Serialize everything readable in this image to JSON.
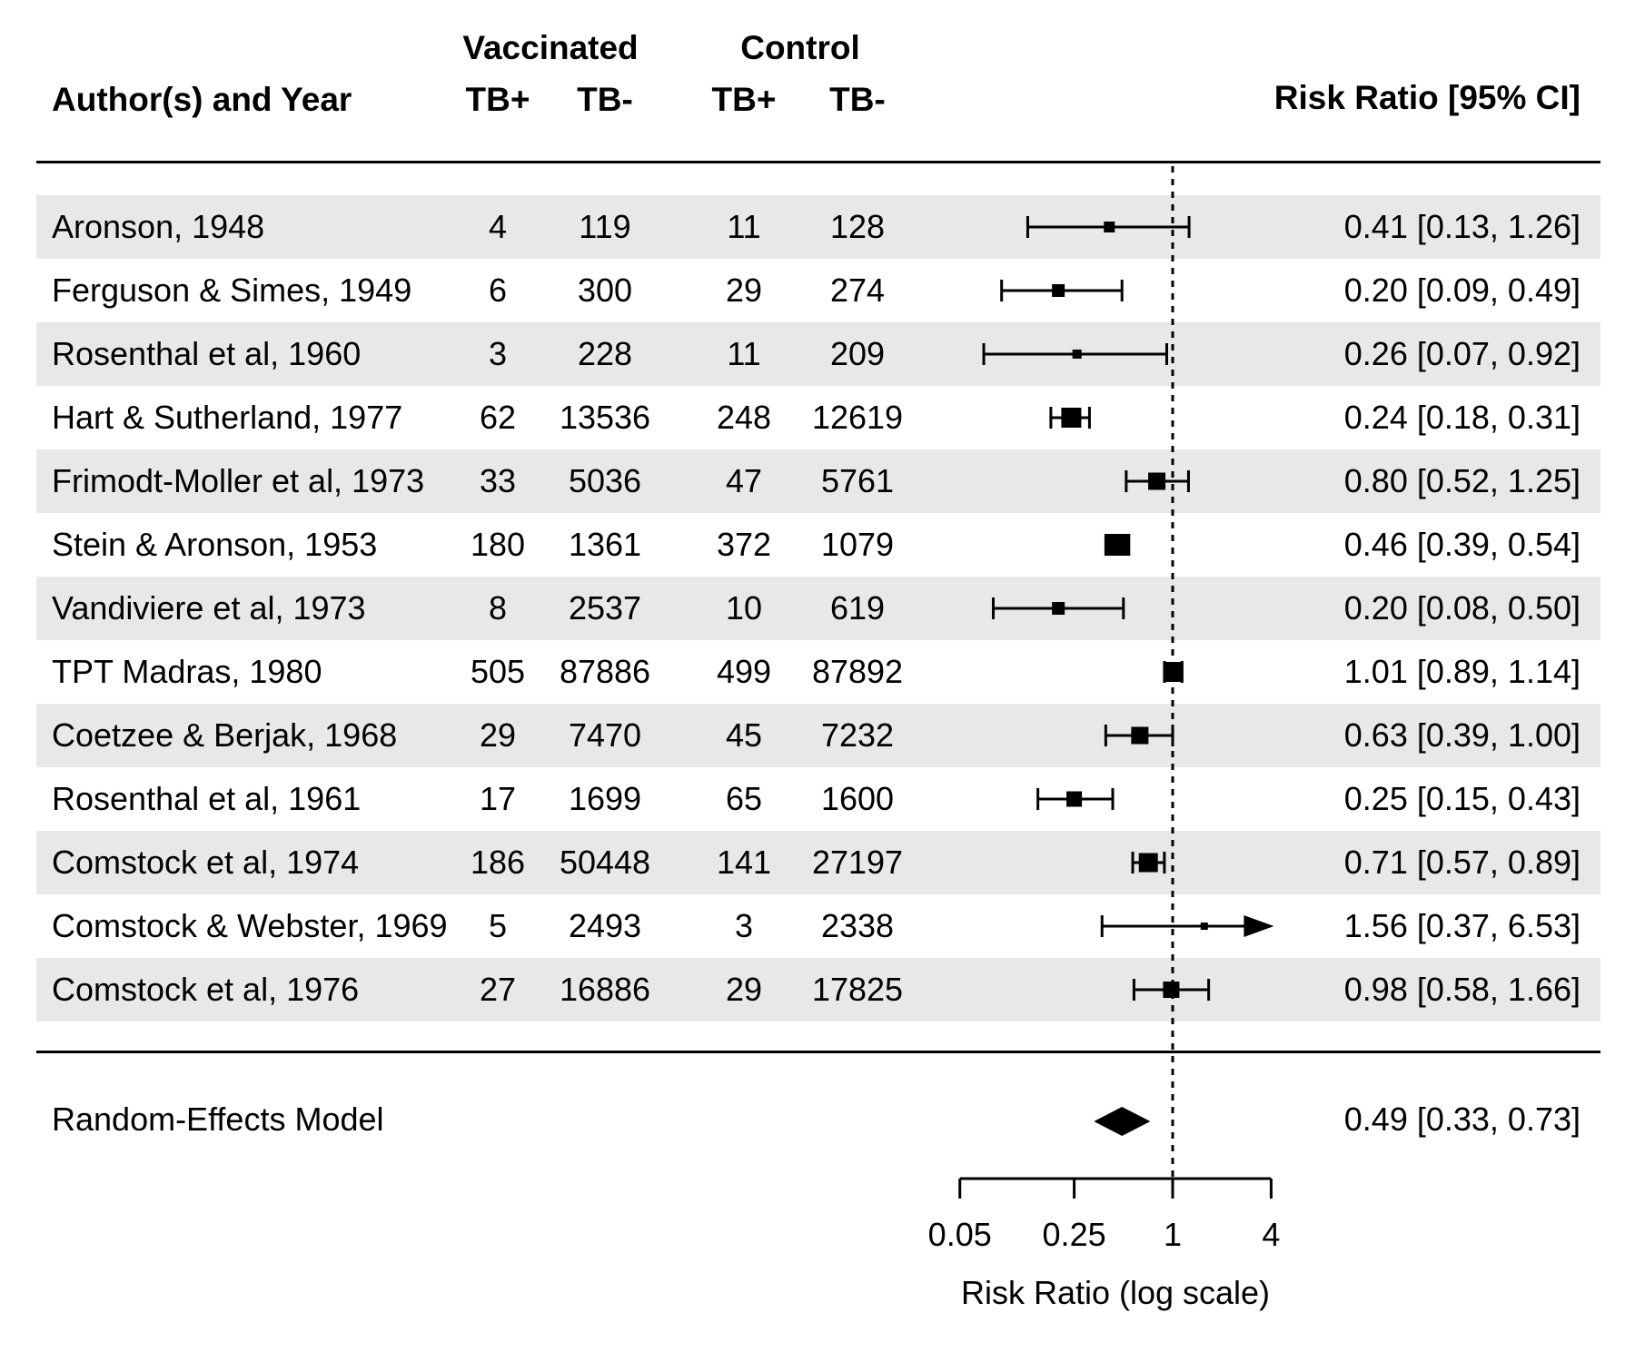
{
  "chart_data": {
    "type": "forest",
    "header": {
      "group_vaccinated": "Vaccinated",
      "group_control": "Control",
      "author": "Author(s) and Year",
      "vaccinated_tb_pos": "TB+",
      "vaccinated_tb_neg": "TB-",
      "control_tb_pos": "TB+",
      "control_tb_neg": "TB-",
      "risk_ratio": "Risk Ratio [95% CI]"
    },
    "studies": [
      {
        "author": "Aronson, 1948",
        "vaccinated_tb_pos": 4,
        "vaccinated_tb_neg": 119,
        "control_tb_pos": 11,
        "control_tb_neg": 128,
        "rr": 0.41,
        "ci_low": 0.13,
        "ci_high": 1.26,
        "estimate_label": "0.41 [0.13, 1.26]",
        "marker_size": 12
      },
      {
        "author": "Ferguson & Simes, 1949",
        "vaccinated_tb_pos": 6,
        "vaccinated_tb_neg": 300,
        "control_tb_pos": 29,
        "control_tb_neg": 274,
        "rr": 0.2,
        "ci_low": 0.09,
        "ci_high": 0.49,
        "estimate_label": "0.20 [0.09, 0.49]",
        "marker_size": 14
      },
      {
        "author": "Rosenthal et al, 1960",
        "vaccinated_tb_pos": 3,
        "vaccinated_tb_neg": 228,
        "control_tb_pos": 11,
        "control_tb_neg": 209,
        "rr": 0.26,
        "ci_low": 0.07,
        "ci_high": 0.92,
        "estimate_label": "0.26 [0.07, 0.92]",
        "marker_size": 10
      },
      {
        "author": "Hart & Sutherland, 1977",
        "vaccinated_tb_pos": 62,
        "vaccinated_tb_neg": 13536,
        "control_tb_pos": 248,
        "control_tb_neg": 12619,
        "rr": 0.24,
        "ci_low": 0.18,
        "ci_high": 0.31,
        "estimate_label": "0.24 [0.18, 0.31]",
        "marker_size": 22
      },
      {
        "author": "Frimodt-Moller et al, 1973",
        "vaccinated_tb_pos": 33,
        "vaccinated_tb_neg": 5036,
        "control_tb_pos": 47,
        "control_tb_neg": 5761,
        "rr": 0.8,
        "ci_low": 0.52,
        "ci_high": 1.25,
        "estimate_label": "0.80 [0.52, 1.25]",
        "marker_size": 19
      },
      {
        "author": "Stein & Aronson, 1953",
        "vaccinated_tb_pos": 180,
        "vaccinated_tb_neg": 1361,
        "control_tb_pos": 372,
        "control_tb_neg": 1079,
        "rr": 0.46,
        "ci_low": 0.39,
        "ci_high": 0.54,
        "estimate_label": "0.46 [0.39, 0.54]",
        "marker_size": 24
      },
      {
        "author": "Vandiviere et al, 1973",
        "vaccinated_tb_pos": 8,
        "vaccinated_tb_neg": 2537,
        "control_tb_pos": 10,
        "control_tb_neg": 619,
        "rr": 0.2,
        "ci_low": 0.08,
        "ci_high": 0.5,
        "estimate_label": "0.20 [0.08, 0.50]",
        "marker_size": 14
      },
      {
        "author": "TPT Madras, 1980",
        "vaccinated_tb_pos": 505,
        "vaccinated_tb_neg": 87886,
        "control_tb_pos": 499,
        "control_tb_neg": 87892,
        "rr": 1.01,
        "ci_low": 0.89,
        "ci_high": 1.14,
        "estimate_label": "1.01 [0.89, 1.14]",
        "marker_size": 22
      },
      {
        "author": "Coetzee & Berjak, 1968",
        "vaccinated_tb_pos": 29,
        "vaccinated_tb_neg": 7470,
        "control_tb_pos": 45,
        "control_tb_neg": 7232,
        "rr": 0.63,
        "ci_low": 0.39,
        "ci_high": 1.0,
        "estimate_label": "0.63 [0.39, 1.00]",
        "marker_size": 19
      },
      {
        "author": "Rosenthal et al, 1961",
        "vaccinated_tb_pos": 17,
        "vaccinated_tb_neg": 1699,
        "control_tb_pos": 65,
        "control_tb_neg": 1600,
        "rr": 0.25,
        "ci_low": 0.15,
        "ci_high": 0.43,
        "estimate_label": "0.25 [0.15, 0.43]",
        "marker_size": 17
      },
      {
        "author": "Comstock et al, 1974",
        "vaccinated_tb_pos": 186,
        "vaccinated_tb_neg": 50448,
        "control_tb_pos": 141,
        "control_tb_neg": 27197,
        "rr": 0.71,
        "ci_low": 0.57,
        "ci_high": 0.89,
        "estimate_label": "0.71 [0.57, 0.89]",
        "marker_size": 21
      },
      {
        "author": "Comstock & Webster, 1969",
        "vaccinated_tb_pos": 5,
        "vaccinated_tb_neg": 2493,
        "control_tb_pos": 3,
        "control_tb_neg": 2338,
        "rr": 1.56,
        "ci_low": 0.37,
        "ci_high": 6.53,
        "estimate_label": "1.56 [0.37, 6.53]",
        "marker_size": 8
      },
      {
        "author": "Comstock et al, 1976",
        "vaccinated_tb_pos": 27,
        "vaccinated_tb_neg": 16886,
        "control_tb_pos": 29,
        "control_tb_neg": 17825,
        "rr": 0.98,
        "ci_low": 0.58,
        "ci_high": 1.66,
        "estimate_label": "0.98 [0.58, 1.66]",
        "marker_size": 18
      }
    ],
    "summary": {
      "label": "Random-Effects Model",
      "rr": 0.49,
      "ci_low": 0.33,
      "ci_high": 0.73,
      "estimate_label": "0.49 [0.33, 0.73]"
    },
    "axis": {
      "scale": "log",
      "ticks": [
        0.05,
        0.25,
        1,
        4
      ],
      "tick_labels": [
        "0.05",
        "0.25",
        "1",
        "4"
      ],
      "label": "Risk Ratio (log scale)",
      "xlim": [
        0.05,
        4
      ],
      "reference_line": 1
    },
    "style": {
      "stripe_color": "#e8e8e8",
      "ink_color": "#000000",
      "background": "#ffffff"
    }
  }
}
